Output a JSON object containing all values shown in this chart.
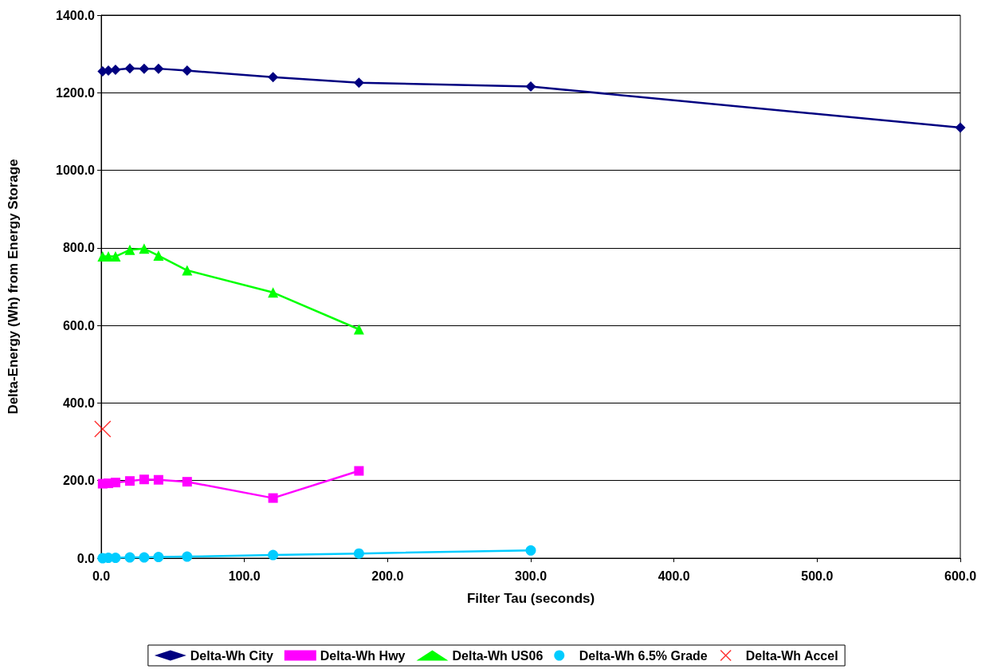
{
  "chart_data": {
    "type": "line",
    "xlabel": "Filter Tau (seconds)",
    "ylabel": "Delta-Energy (Wh) from Energy Storage",
    "x": [
      1,
      5,
      10,
      20,
      30,
      40,
      60,
      120,
      180,
      300,
      600
    ],
    "series": [
      {
        "name": "Delta-Wh City",
        "color": "#000080",
        "marker": "diamond",
        "values": [
          1255,
          1257,
          1259,
          1263,
          1262,
          1262,
          1257,
          1240,
          1226,
          1216,
          1110
        ]
      },
      {
        "name": "Delta-Wh Hwy",
        "color": "#ff00ff",
        "marker": "square",
        "x": [
          1,
          5,
          10,
          20,
          30,
          40,
          60,
          120,
          180
        ],
        "values": [
          192,
          193,
          195,
          199,
          203,
          202,
          197,
          155,
          225
        ]
      },
      {
        "name": "Delta-Wh US06",
        "color": "#00ff00",
        "marker": "triangle",
        "x": [
          1,
          5,
          10,
          20,
          30,
          40,
          60,
          120,
          180
        ],
        "values": [
          778,
          778,
          778,
          795,
          798,
          780,
          742,
          685,
          590
        ]
      },
      {
        "name": "Delta-Wh 6.5% Grade",
        "color": "#00ccff",
        "marker": "circle",
        "x": [
          1,
          5,
          10,
          20,
          30,
          40,
          60,
          120,
          180,
          300
        ],
        "values": [
          0,
          1,
          1,
          2,
          2,
          3,
          4,
          8,
          12,
          20
        ]
      },
      {
        "name": "Delta-Wh Accel",
        "color": "#ff0000",
        "type": "scatter",
        "marker": "cross",
        "x": [
          1
        ],
        "values": [
          333
        ]
      }
    ],
    "xlim": [
      0,
      600
    ],
    "xticks": [
      {
        "value": 0,
        "label": "0.0"
      },
      {
        "value": 100,
        "label": "100.0"
      },
      {
        "value": 200,
        "label": "200.0"
      },
      {
        "value": 300,
        "label": "300.0"
      },
      {
        "value": 400,
        "label": "400.0"
      },
      {
        "value": 500,
        "label": "500.0"
      },
      {
        "value": 600,
        "label": "600.0"
      }
    ],
    "ylim": [
      0,
      1400
    ],
    "yticks": [
      {
        "value": 0,
        "label": "0.0"
      },
      {
        "value": 200,
        "label": "200.0"
      },
      {
        "value": 400,
        "label": "400.0"
      },
      {
        "value": 600,
        "label": "600.0"
      },
      {
        "value": 800,
        "label": "800.0"
      },
      {
        "value": 1000,
        "label": "1000.0"
      },
      {
        "value": 1200,
        "label": "1200.0"
      },
      {
        "value": 1400,
        "label": "1400.0"
      }
    ],
    "grid": "y",
    "legend": "bottom",
    "line_style": "solid"
  }
}
